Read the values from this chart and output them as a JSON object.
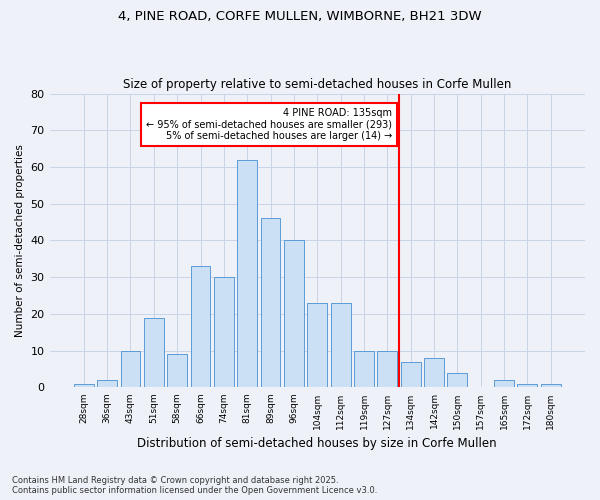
{
  "title1": "4, PINE ROAD, CORFE MULLEN, WIMBORNE, BH21 3DW",
  "title2": "Size of property relative to semi-detached houses in Corfe Mullen",
  "xlabel": "Distribution of semi-detached houses by size in Corfe Mullen",
  "ylabel": "Number of semi-detached properties",
  "bar_labels": [
    "28sqm",
    "36sqm",
    "43sqm",
    "51sqm",
    "58sqm",
    "66sqm",
    "74sqm",
    "81sqm",
    "89sqm",
    "96sqm",
    "104sqm",
    "112sqm",
    "119sqm",
    "127sqm",
    "134sqm",
    "142sqm",
    "150sqm",
    "157sqm",
    "165sqm",
    "172sqm",
    "180sqm"
  ],
  "bar_values": [
    1,
    2,
    10,
    19,
    9,
    33,
    30,
    62,
    46,
    40,
    23,
    23,
    10,
    10,
    7,
    8,
    4,
    0,
    2,
    1,
    1
  ],
  "bar_color": "#cce0f5",
  "bar_edge_color": "#5b9bd5",
  "vline_index": 14,
  "vline_color": "red",
  "annotation_text": "4 PINE ROAD: 135sqm\n← 95% of semi-detached houses are smaller (293)\n5% of semi-detached houses are larger (14) →",
  "annotation_box_color": "white",
  "annotation_box_edge_color": "red",
  "ylim": [
    0,
    80
  ],
  "yticks": [
    0,
    10,
    20,
    30,
    40,
    50,
    60,
    70,
    80
  ],
  "footnote": "Contains HM Land Registry data © Crown copyright and database right 2025.\nContains public sector information licensed under the Open Government Licence v3.0.",
  "grid_color": "#c8d4e8",
  "background_color": "#eef2f8"
}
